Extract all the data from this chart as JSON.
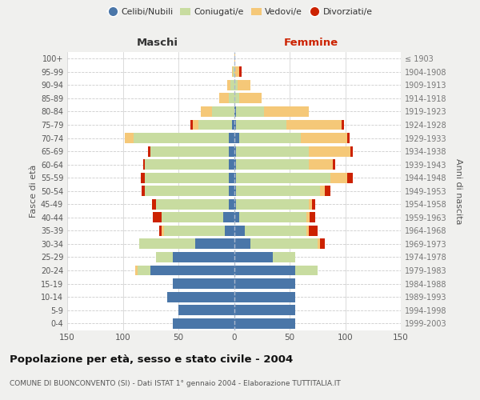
{
  "age_groups": [
    "0-4",
    "5-9",
    "10-14",
    "15-19",
    "20-24",
    "25-29",
    "30-34",
    "35-39",
    "40-44",
    "45-49",
    "50-54",
    "55-59",
    "60-64",
    "65-69",
    "70-74",
    "75-79",
    "80-84",
    "85-89",
    "90-94",
    "95-99",
    "100+"
  ],
  "birth_years": [
    "1999-2003",
    "1994-1998",
    "1989-1993",
    "1984-1988",
    "1979-1983",
    "1974-1978",
    "1969-1973",
    "1964-1968",
    "1959-1963",
    "1954-1958",
    "1949-1953",
    "1944-1948",
    "1939-1943",
    "1934-1938",
    "1929-1933",
    "1924-1928",
    "1919-1923",
    "1914-1918",
    "1909-1913",
    "1904-1908",
    "≤ 1903"
  ],
  "maschi": {
    "celibi": [
      55,
      50,
      60,
      55,
      75,
      55,
      35,
      8,
      10,
      5,
      5,
      5,
      5,
      5,
      5,
      2,
      0,
      0,
      0,
      0,
      0
    ],
    "coniugati": [
      0,
      0,
      0,
      0,
      12,
      15,
      50,
      55,
      55,
      65,
      75,
      75,
      75,
      70,
      85,
      30,
      20,
      5,
      3,
      1,
      0
    ],
    "vedovi": [
      0,
      0,
      0,
      0,
      2,
      0,
      0,
      2,
      0,
      0,
      0,
      0,
      0,
      0,
      8,
      5,
      10,
      8,
      3,
      1,
      0
    ],
    "divorziati": [
      0,
      0,
      0,
      0,
      0,
      0,
      0,
      2,
      8,
      4,
      3,
      4,
      2,
      2,
      0,
      2,
      0,
      0,
      0,
      0,
      0
    ]
  },
  "femmine": {
    "nubili": [
      55,
      55,
      55,
      55,
      55,
      35,
      15,
      10,
      5,
      2,
      2,
      2,
      2,
      2,
      5,
      2,
      2,
      0,
      0,
      0,
      0
    ],
    "coniugate": [
      0,
      0,
      0,
      0,
      20,
      20,
      60,
      55,
      60,
      65,
      75,
      85,
      65,
      65,
      55,
      45,
      25,
      5,
      3,
      0,
      0
    ],
    "vedove": [
      0,
      0,
      0,
      0,
      0,
      0,
      2,
      2,
      3,
      3,
      5,
      15,
      22,
      38,
      42,
      50,
      40,
      20,
      12,
      5,
      1
    ],
    "divorziate": [
      0,
      0,
      0,
      0,
      0,
      0,
      5,
      8,
      5,
      3,
      5,
      5,
      2,
      2,
      2,
      2,
      0,
      0,
      0,
      2,
      0
    ]
  },
  "colors": {
    "celibi_nubili": "#4a76a8",
    "coniugati": "#c8dca0",
    "vedovi": "#f5c878",
    "divorziati": "#cc2200"
  },
  "xlim": 150,
  "title": "Popolazione per età, sesso e stato civile - 2004",
  "subtitle": "COMUNE DI BUONCONVENTO (SI) - Dati ISTAT 1° gennaio 2004 - Elaborazione TUTTITALIA.IT",
  "ylabel_left": "Fasce di età",
  "ylabel_right": "Anni di nascita",
  "xlabel_left": "Maschi",
  "xlabel_right": "Femmine",
  "bg_color": "#f0f0ee",
  "plot_bg": "#ffffff"
}
